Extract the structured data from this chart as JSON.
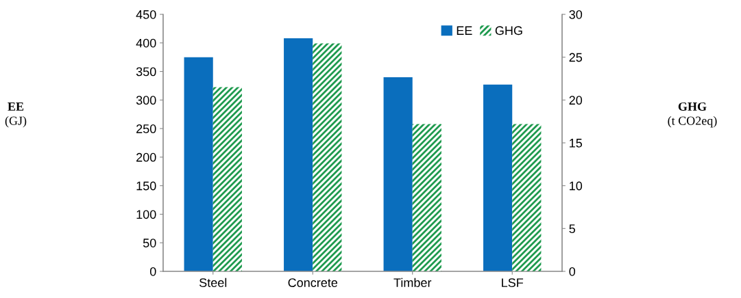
{
  "chart_data": {
    "type": "bar",
    "categories": [
      "Steel",
      "Concrete",
      "Timber",
      "LSF"
    ],
    "series": [
      {
        "name": "EE",
        "color": "#0a6ebd",
        "values": [
          375,
          408,
          340,
          327
        ]
      },
      {
        "name": "GHG",
        "color": "#1e9a4e",
        "axis": "y2",
        "values": [
          21.5,
          26.6,
          17.2,
          17.2
        ]
      }
    ],
    "annotations": [
      "EE (GJ)",
      "GHG (t CO2eq)"
    ],
    "ylim": [
      0,
      450
    ],
    "yticks": [
      0,
      50,
      100,
      150,
      200,
      250,
      300,
      350,
      400,
      450
    ],
    "y2lim": [
      0,
      30
    ],
    "y2ticks": [
      0,
      5,
      10,
      15,
      20,
      25,
      30
    ],
    "grid": false,
    "legend": "top right"
  }
}
